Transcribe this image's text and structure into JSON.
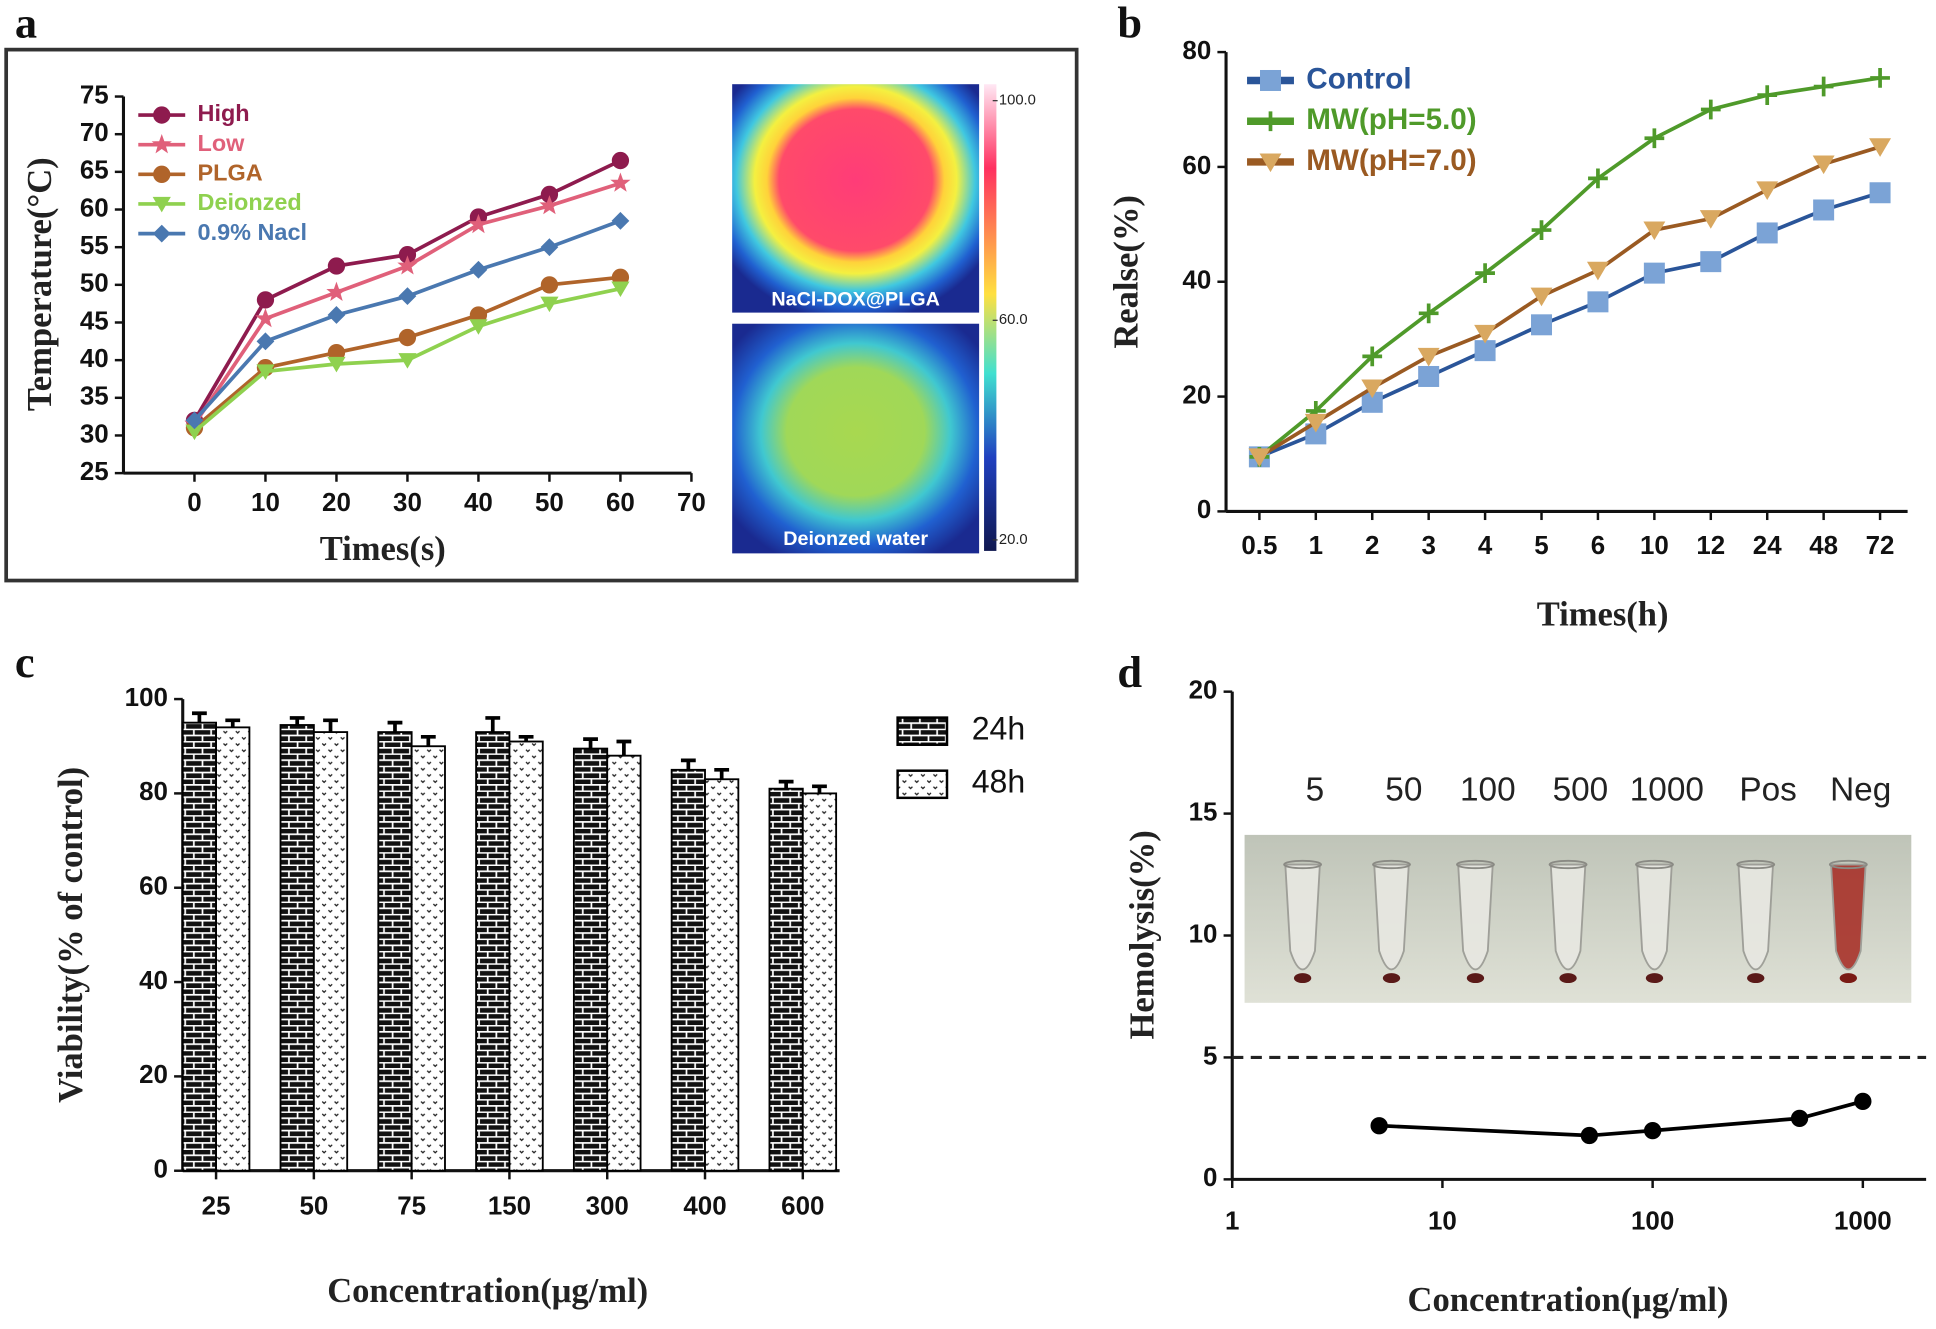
{
  "chart_data": [
    {
      "panel": "a",
      "type": "line",
      "x_label": "Times(s)",
      "y_label": "Temperature(°C)",
      "x": [
        0,
        10,
        20,
        30,
        40,
        50,
        60
      ],
      "series": [
        {
          "name": "High",
          "color": "#8e1b4e",
          "marker": "circle",
          "values": [
            32,
            48,
            52.5,
            54,
            59,
            62,
            66.5
          ]
        },
        {
          "name": "Low",
          "color": "#e0607a",
          "marker": "star",
          "values": [
            31.5,
            45.5,
            49,
            52.5,
            58,
            60.5,
            63.5
          ]
        },
        {
          "name": "PLGA",
          "color": "#b0642a",
          "marker": "circle",
          "values": [
            31,
            39,
            41,
            43,
            46,
            50,
            51
          ]
        },
        {
          "name": "Deionzed",
          "color": "#8fd14f",
          "marker": "triangle-down",
          "values": [
            30.5,
            38.5,
            39.5,
            40,
            44.5,
            47.5,
            49.5
          ]
        },
        {
          "name": "0.9% Nacl",
          "color": "#4a78b0",
          "marker": "diamond",
          "values": [
            32,
            42.5,
            46,
            48.5,
            52,
            55,
            58.5
          ]
        }
      ],
      "xlim": [
        -10,
        70
      ],
      "xticks": [
        0,
        10,
        20,
        30,
        40,
        50,
        60,
        70
      ],
      "ylim": [
        25,
        75
      ],
      "yticks": [
        25,
        30,
        35,
        40,
        45,
        50,
        55,
        60,
        65,
        70,
        75
      ],
      "image_labels": [
        "NaCl-DOX@PLGA",
        "Deionzed water"
      ],
      "colorbar_lim": [
        18,
        103
      ],
      "colorbar_ticks": [
        {
          "value": 100,
          "label": "100.0"
        },
        {
          "value": 60,
          "label": "60.0"
        },
        {
          "value": 20,
          "label": "20.0"
        }
      ]
    },
    {
      "panel": "b",
      "type": "line",
      "x_label": "Times(h)",
      "y_label": "Realse(%)",
      "categories": [
        "0.5",
        "1",
        "2",
        "3",
        "4",
        "5",
        "6",
        "10",
        "12",
        "24",
        "48",
        "72"
      ],
      "series": [
        {
          "name": "Control",
          "color": "#2a5599",
          "marker_color": "#7ba3d6",
          "marker": "square",
          "values": [
            9.5,
            13.5,
            19,
            23.5,
            28,
            32.5,
            36.5,
            41.5,
            43.5,
            48.5,
            52.5,
            55.5
          ]
        },
        {
          "name": "MW(pH=5.0)",
          "color": "#4f9a2a",
          "marker_color": "#4f9a2a",
          "marker": "plus",
          "values": [
            9.5,
            17.5,
            27,
            34.5,
            41.5,
            49,
            58,
            65,
            70,
            72.5,
            74,
            75.5
          ]
        },
        {
          "name": "MW(pH=7.0)",
          "color": "#9a5a22",
          "marker_color": "#d9a860",
          "marker": "triangle-down",
          "values": [
            9.5,
            15.5,
            21.5,
            27,
            31,
            37.5,
            42,
            49,
            51,
            56,
            60.5,
            63.5
          ]
        }
      ],
      "ylim": [
        0,
        80
      ],
      "yticks": [
        0,
        20,
        40,
        60,
        80
      ]
    },
    {
      "panel": "c",
      "type": "bar",
      "x_label": "Concentration(μg/ml)",
      "y_label": "Viability(% of control)",
      "categories": [
        "25",
        "50",
        "75",
        "150",
        "300",
        "400",
        "600"
      ],
      "series": [
        {
          "name": "24h",
          "pattern": "brick",
          "color": "#000000",
          "values": [
            95,
            94.5,
            93,
            93,
            89.5,
            85,
            81
          ],
          "errors": [
            2,
            1.5,
            2,
            3,
            2,
            2,
            1.5
          ]
        },
        {
          "name": "48h",
          "pattern": "dots",
          "color": "#000000",
          "values": [
            94,
            93,
            90,
            91,
            88,
            83,
            80
          ],
          "errors": [
            1.5,
            2.5,
            2,
            1,
            3,
            2,
            1.5
          ]
        }
      ],
      "ylim": [
        0,
        100
      ],
      "yticks": [
        0,
        20,
        40,
        60,
        80,
        100
      ]
    },
    {
      "panel": "d",
      "type": "line",
      "x_label": "Concentration(μg/ml)",
      "y_label": "Hemolysis(%)",
      "x": [
        5,
        50,
        100,
        500,
        1000
      ],
      "series": [
        {
          "color": "#000000",
          "marker": "circle",
          "values": [
            2.2,
            1.8,
            2.0,
            2.5,
            3.2
          ]
        }
      ],
      "xscale": "log",
      "xlim": [
        1,
        2000
      ],
      "xticks": [
        1,
        10,
        100,
        1000
      ],
      "ylim": [
        0,
        20
      ],
      "yticks": [
        0,
        5,
        10,
        15,
        20
      ],
      "hline": 5,
      "photo_labels": [
        "5",
        "50",
        "100",
        "500",
        "1000",
        "Pos",
        "Neg"
      ]
    }
  ]
}
